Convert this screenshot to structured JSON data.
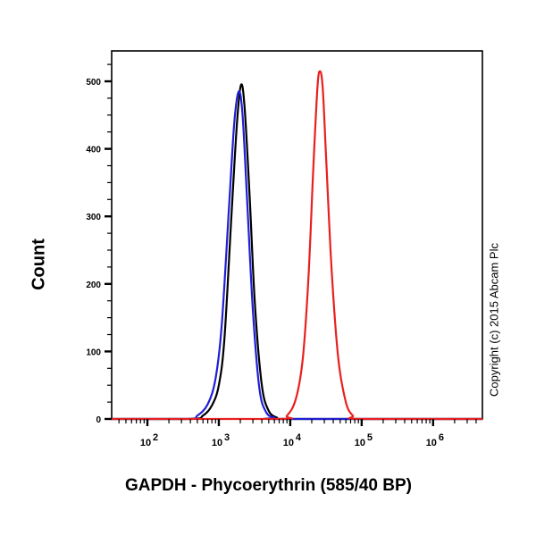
{
  "chart_data": {
    "type": "line",
    "subtype": "flow-cytometry-histogram",
    "title": "",
    "xlabel": "GAPDH - Phycoerythrin (585/40 BP)",
    "ylabel": "Count",
    "xscale": "log",
    "xlim": [
      31.6,
      4900000
    ],
    "ylim": [
      0,
      545
    ],
    "x_ticks": [
      100,
      1000,
      10000,
      100000,
      1000000
    ],
    "x_tick_labels": [
      {
        "base": "10",
        "exp": "2"
      },
      {
        "base": "10",
        "exp": "3"
      },
      {
        "base": "10",
        "exp": "4"
      },
      {
        "base": "10",
        "exp": "5"
      },
      {
        "base": "10",
        "exp": "6"
      }
    ],
    "y_ticks": [
      0,
      100,
      200,
      300,
      400,
      500
    ],
    "y_tick_labels": [
      "0",
      "100",
      "200",
      "300",
      "400",
      "500"
    ],
    "grid": false,
    "legend": null,
    "annotations": [
      "Copyright (c) 2015 Abcam Plc"
    ],
    "series": [
      {
        "name": "black",
        "color": "#000000",
        "x": [
          31.6,
          400,
          600,
          800,
          1000,
          1200,
          1500,
          1800,
          2050,
          2300,
          2700,
          3200,
          4000,
          5000,
          6500,
          8000,
          4900000
        ],
        "y": [
          0,
          0,
          5,
          20,
          50,
          120,
          300,
          440,
          495,
          460,
          330,
          170,
          50,
          12,
          2,
          0,
          0
        ]
      },
      {
        "name": "blue",
        "color": "#1f1fd6",
        "x": [
          31.6,
          350,
          500,
          700,
          900,
          1100,
          1400,
          1650,
          1900,
          2150,
          2500,
          3000,
          3700,
          4600,
          6000,
          7500,
          4900000
        ],
        "y": [
          0,
          0,
          5,
          22,
          60,
          140,
          320,
          440,
          485,
          450,
          320,
          160,
          45,
          10,
          2,
          0,
          0
        ]
      },
      {
        "name": "red",
        "color": "#e8201f",
        "x": [
          31.6,
          6500,
          9000,
          12000,
          15000,
          18000,
          21000,
          24000,
          26000,
          28500,
          32000,
          38000,
          47000,
          60000,
          75000,
          95000,
          4900000
        ],
        "y": [
          0,
          0,
          5,
          30,
          90,
          210,
          370,
          490,
          515,
          490,
          380,
          220,
          90,
          25,
          5,
          0,
          0
        ]
      }
    ]
  },
  "page": {
    "ylabel": "Count",
    "xlabel": "GAPDH - Phycoerythrin (585/40 BP)",
    "copyright": "Copyright (c) 2015 Abcam Plc"
  }
}
